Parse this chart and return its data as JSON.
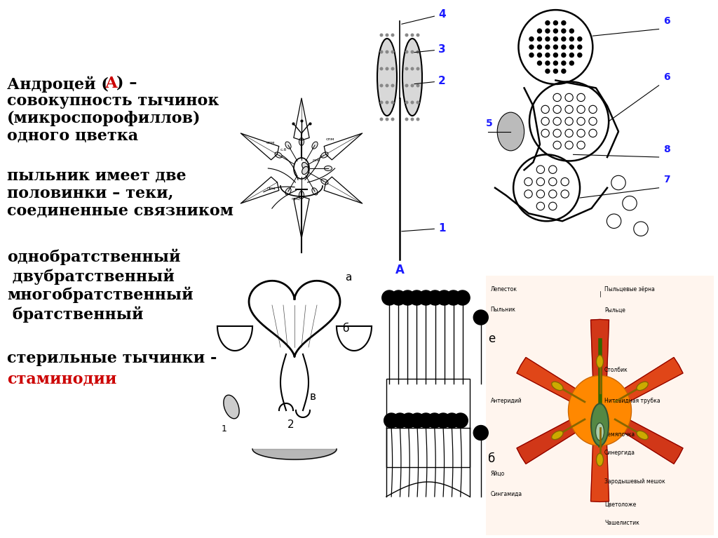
{
  "bg": "#ffffff",
  "title_line1_black1": "Андроцей (",
  "title_line1_red": "А",
  "title_line1_black2": ") –",
  "title_line2": "совокупность тычинок",
  "title_line3": "(микроспорофиллов)",
  "title_line4": "одного цветка",
  "para2_line1": "пыльник имеет две",
  "para2_line2": "половинки – теки,",
  "para2_line3": "соединенные связником",
  "para3_line1": "однобратственный",
  "para3_line2": " двубратственный",
  "para3_line3": "многобратственный",
  "para3_line4": " братственный",
  "para4_line1": "стерильные тычинки -",
  "para4_line2": "стаминодии",
  "black": "#000000",
  "red": "#cc0000",
  "blue": "#1a1aff",
  "fs_main": 16,
  "fs_label": 9
}
